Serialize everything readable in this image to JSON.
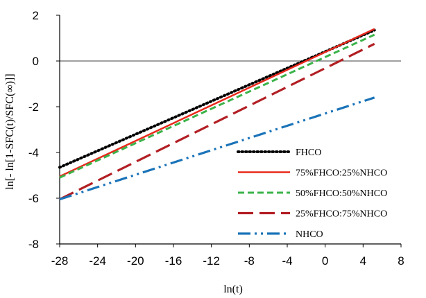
{
  "chart_data": {
    "type": "line",
    "xlabel": "ln(t)",
    "ylabel": "ln[- ln[1-SFC(t)/SFC(∞)]]",
    "xlim": [
      -28,
      8
    ],
    "ylim": [
      -8,
      2
    ],
    "xticks": [
      -28,
      -24,
      -20,
      -16,
      -12,
      -8,
      -4,
      0,
      4,
      8
    ],
    "yticks": [
      2,
      0,
      -2,
      -4,
      -6,
      -8
    ],
    "grid": false,
    "legend_position": "bottom-right",
    "series": [
      {
        "name": "FHCO",
        "color": "#000000",
        "style": "dotted",
        "x": [
          -28,
          5.2
        ],
        "y": [
          -4.65,
          1.35
        ]
      },
      {
        "name": "75%FHCO:25%NHCO",
        "color": "#e8291c",
        "style": "solid",
        "x": [
          -28,
          5.2
        ],
        "y": [
          -5.05,
          1.4
        ]
      },
      {
        "name": "50%FHCO:50%NHCO",
        "color": "#3bb34a",
        "style": "dashed",
        "x": [
          -28,
          5.2
        ],
        "y": [
          -5.1,
          1.15
        ]
      },
      {
        "name": "25%FHCO:75%NHCO",
        "color": "#b21f24",
        "style": "longdash",
        "x": [
          -28,
          5.2
        ],
        "y": [
          -6.05,
          0.75
        ]
      },
      {
        "name": "NHCO",
        "color": "#1a73b8",
        "style": "dashdotdot",
        "x": [
          -28,
          5.2
        ],
        "y": [
          -6.05,
          -1.6
        ]
      }
    ]
  }
}
